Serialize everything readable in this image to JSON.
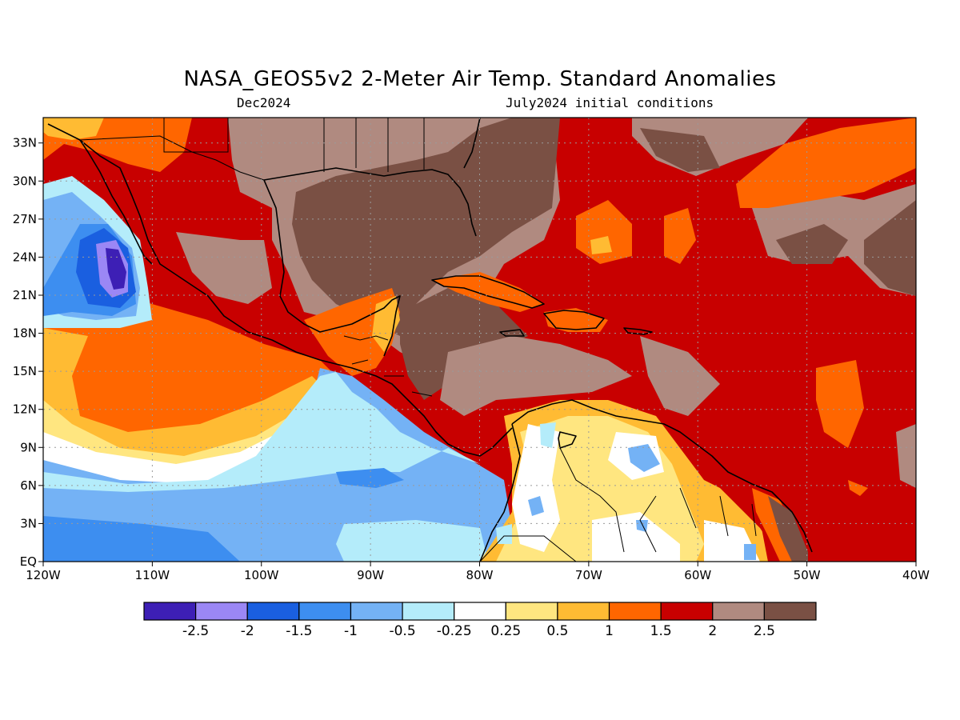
{
  "title": "NASA_GEOS5v2 2-Meter Air Temp. Standard Anomalies",
  "subtitle_left": "Dec2024",
  "subtitle_right": "July2024 initial conditions",
  "map": {
    "lon_range": [
      -120,
      -40
    ],
    "lat_range": [
      0,
      35
    ],
    "x_ticks": [
      {
        "value": -120,
        "label": "120W"
      },
      {
        "value": -110,
        "label": "110W"
      },
      {
        "value": -100,
        "label": "100W"
      },
      {
        "value": -90,
        "label": "90W"
      },
      {
        "value": -80,
        "label": "80W"
      },
      {
        "value": -70,
        "label": "70W"
      },
      {
        "value": -60,
        "label": "60W"
      },
      {
        "value": -50,
        "label": "50W"
      },
      {
        "value": -40,
        "label": "40W"
      }
    ],
    "y_ticks": [
      {
        "value": 0,
        "label": "EQ"
      },
      {
        "value": 3,
        "label": "3N"
      },
      {
        "value": 6,
        "label": "6N"
      },
      {
        "value": 9,
        "label": "9N"
      },
      {
        "value": 12,
        "label": "12N"
      },
      {
        "value": 15,
        "label": "15N"
      },
      {
        "value": 18,
        "label": "18N"
      },
      {
        "value": 21,
        "label": "21N"
      },
      {
        "value": 24,
        "label": "24N"
      },
      {
        "value": 27,
        "label": "27N"
      },
      {
        "value": 30,
        "label": "30N"
      },
      {
        "value": 33,
        "label": "33N"
      }
    ]
  },
  "colorbar": {
    "colors": [
      "#3d1fb5",
      "#9b87f5",
      "#1a5fe0",
      "#3d8ef0",
      "#74b2f5",
      "#b4ecfa",
      "#ffffff",
      "#ffe680",
      "#ffbb33",
      "#ff6600",
      "#c80000",
      "#b08a80",
      "#7a5044"
    ],
    "labels": [
      "-2.5",
      "-2",
      "-1.5",
      "-1",
      "-0.5",
      "-0.25",
      "0.25",
      "0.5",
      "1",
      "1.5",
      "2",
      "2.5"
    ]
  },
  "palette": {
    "deep_purple": "#3d1fb5",
    "purple": "#9b87f5",
    "blue": "#1a5fe0",
    "mid_blue": "#3d8ef0",
    "light_blue": "#74b2f5",
    "pale_blue": "#b4ecfa",
    "white": "#ffffff",
    "yellow": "#ffe680",
    "light_orange": "#ffbb33",
    "orange": "#ff6600",
    "red": "#c80000",
    "tan": "#b08a80",
    "brown": "#7a5044"
  }
}
